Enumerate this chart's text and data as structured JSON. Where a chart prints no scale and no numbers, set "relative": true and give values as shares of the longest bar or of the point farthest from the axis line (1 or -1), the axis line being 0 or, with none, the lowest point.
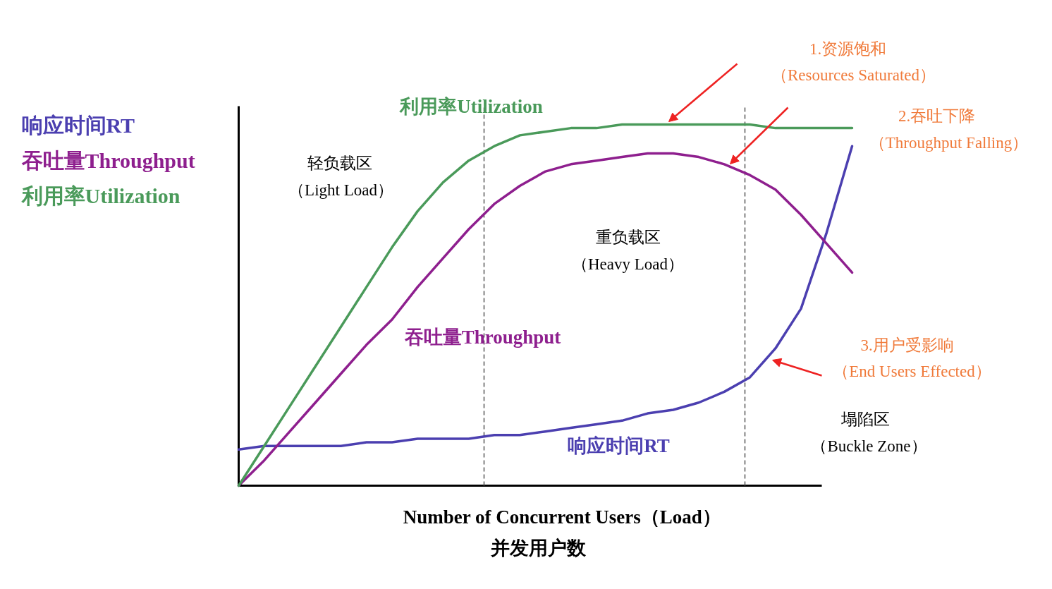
{
  "chart_data": {
    "type": "line",
    "relative": true,
    "xlabel": "Number of Concurrent Users（Load）",
    "categories": [
      null,
      null,
      null,
      null,
      null,
      null,
      null,
      null,
      null,
      null,
      null,
      null,
      null,
      null,
      null,
      null,
      null,
      null,
      null,
      null,
      null,
      null,
      null,
      null,
      null
    ],
    "series": [
      {
        "name": "响应时间RT",
        "color": "#4b3fb0",
        "values": [
          0.1,
          0.11,
          0.11,
          0.11,
          0.11,
          0.12,
          0.12,
          0.13,
          0.13,
          0.13,
          0.14,
          0.14,
          0.15,
          0.16,
          0.17,
          0.18,
          0.2,
          0.21,
          0.23,
          0.26,
          0.3,
          0.38,
          0.49,
          0.7,
          0.94
        ]
      },
      {
        "name": "吞吐量Throughput",
        "color": "#8e1f8e",
        "values": [
          0,
          0.07,
          0.15,
          0.23,
          0.31,
          0.39,
          0.46,
          0.55,
          0.63,
          0.71,
          0.78,
          0.83,
          0.87,
          0.89,
          0.9,
          0.91,
          0.92,
          0.92,
          0.91,
          0.89,
          0.86,
          0.82,
          0.75,
          0.67,
          0.59
        ]
      },
      {
        "name": "利用率Utilization",
        "color": "#4a9a5a",
        "values": [
          0,
          0.11,
          0.22,
          0.33,
          0.44,
          0.55,
          0.66,
          0.76,
          0.84,
          0.9,
          0.94,
          0.97,
          0.98,
          0.99,
          0.99,
          1.0,
          1.0,
          1.0,
          1.0,
          1.0,
          1.0,
          0.99,
          0.99,
          0.99,
          0.99
        ]
      }
    ],
    "annotations": [
      "轻负载区",
      "（Light Load）",
      "重负载区",
      "（Heavy Load）",
      "塌陷区",
      "（Buckle Zone）",
      "1.资源饱和",
      "（Resources Saturated）",
      "2.吞吐下降",
      "（Throughput Falling）",
      "3.用户受影响",
      "（End Users Effected）",
      "并发用户数"
    ],
    "legend": "left",
    "grid": false,
    "marker": "none",
    "line_style": "solid"
  }
}
